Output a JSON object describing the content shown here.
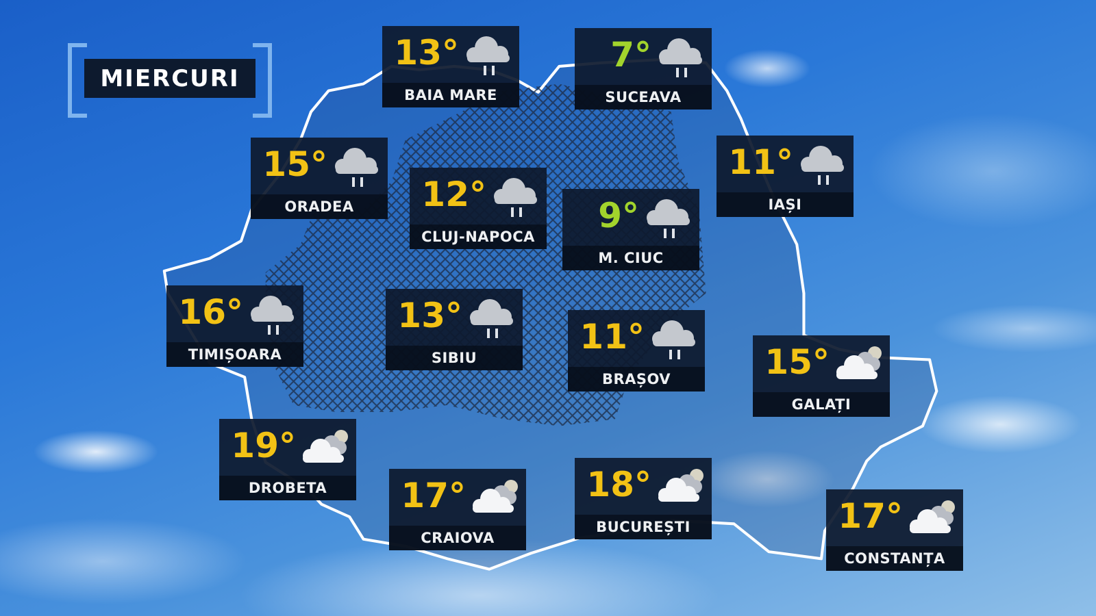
{
  "day": "MIERCURI",
  "colors": {
    "warm_temp": "#f2c215",
    "cold_temp": "#a2d42c",
    "card_bg": "#0e1a2e",
    "bracket": "#7fb4ee"
  },
  "cities": [
    {
      "name": "BAIA MARE",
      "temp": "13°",
      "icon": "rain-cloud-icon",
      "tone": "warm"
    },
    {
      "name": "SUCEAVA",
      "temp": "7°",
      "icon": "rain-cloud-icon",
      "tone": "cold"
    },
    {
      "name": "ORADEA",
      "temp": "15°",
      "icon": "rain-cloud-icon",
      "tone": "warm"
    },
    {
      "name": "CLUJ-NAPOCA",
      "temp": "12°",
      "icon": "rain-cloud-icon",
      "tone": "warm"
    },
    {
      "name": "M. CIUC",
      "temp": "9°",
      "icon": "rain-cloud-icon",
      "tone": "cold"
    },
    {
      "name": "IAȘI",
      "temp": "11°",
      "icon": "rain-cloud-icon",
      "tone": "warm"
    },
    {
      "name": "TIMIȘOARA",
      "temp": "16°",
      "icon": "rain-cloud-icon",
      "tone": "warm"
    },
    {
      "name": "SIBIU",
      "temp": "13°",
      "icon": "rain-cloud-icon",
      "tone": "warm"
    },
    {
      "name": "BRAȘOV",
      "temp": "11°",
      "icon": "rain-cloud-icon",
      "tone": "warm"
    },
    {
      "name": "GALAȚI",
      "temp": "15°",
      "icon": "cloudy-moon-icon",
      "tone": "warm"
    },
    {
      "name": "DROBETA",
      "temp": "19°",
      "icon": "cloudy-moon-icon",
      "tone": "warm"
    },
    {
      "name": "CRAIOVA",
      "temp": "17°",
      "icon": "cloudy-moon-icon",
      "tone": "warm"
    },
    {
      "name": "BUCUREȘTI",
      "temp": "18°",
      "icon": "cloudy-moon-icon",
      "tone": "warm"
    },
    {
      "name": "CONSTANȚA",
      "temp": "17°",
      "icon": "cloudy-moon-icon",
      "tone": "warm"
    }
  ]
}
